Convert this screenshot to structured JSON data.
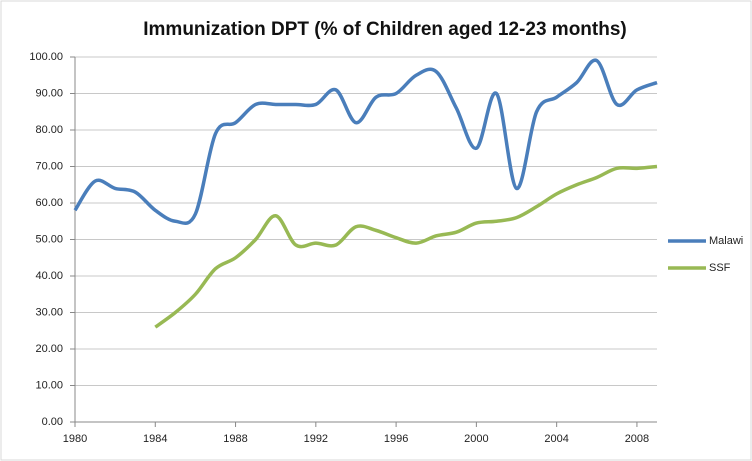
{
  "chart_data": {
    "type": "line",
    "title": "Immunization DPT (% of Children aged 12-23 months)",
    "x": [
      1980,
      1981,
      1982,
      1983,
      1984,
      1985,
      1986,
      1987,
      1988,
      1989,
      1990,
      1991,
      1992,
      1993,
      1994,
      1995,
      1996,
      1997,
      1998,
      1999,
      2000,
      2001,
      2002,
      2003,
      2004,
      2005,
      2006,
      2007,
      2008,
      2009
    ],
    "series": [
      {
        "name": "Malawi",
        "color": "#4a7ebb",
        "values": [
          58,
          66,
          64,
          63,
          58,
          55,
          57,
          79,
          82,
          87,
          87,
          87,
          87,
          91,
          82,
          89,
          90,
          95,
          96,
          86,
          75,
          90,
          64,
          85,
          89,
          93,
          99,
          87,
          91,
          93
        ]
      },
      {
        "name": "SSF",
        "color": "#98b954",
        "values": [
          null,
          null,
          null,
          null,
          26,
          30,
          35,
          42,
          45,
          50,
          56.5,
          48.5,
          49,
          48.5,
          53.5,
          52.5,
          50.5,
          49,
          51,
          52,
          54.5,
          55,
          56,
          59,
          62.5,
          65,
          67,
          69.5,
          69.5,
          70
        ]
      }
    ],
    "xlim": [
      1980,
      2009
    ],
    "xticks": [
      1980,
      1984,
      1988,
      1992,
      1996,
      2000,
      2004,
      2008
    ],
    "ylim": [
      0,
      100
    ],
    "yticks": [
      {
        "value": 0,
        "label": "0.00"
      },
      {
        "value": 10,
        "label": "10.00"
      },
      {
        "value": 20,
        "label": "20.00"
      },
      {
        "value": 30,
        "label": "30.00"
      },
      {
        "value": 40,
        "label": "40.00"
      },
      {
        "value": 50,
        "label": "50.00"
      },
      {
        "value": 60,
        "label": "60.00"
      },
      {
        "value": 70,
        "label": "70.00"
      },
      {
        "value": 80,
        "label": "80.00"
      },
      {
        "value": 90,
        "label": "90.00"
      },
      {
        "value": 100,
        "label": "100.00"
      }
    ],
    "grid": true,
    "legend": "right"
  }
}
